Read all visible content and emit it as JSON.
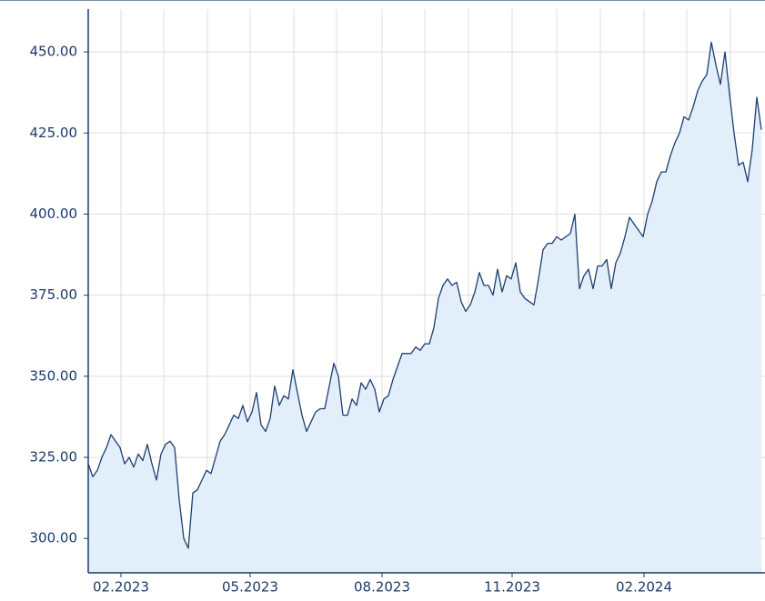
{
  "chart_data": {
    "type": "area",
    "values": [
      323,
      319,
      321,
      325,
      328,
      332,
      330,
      328,
      323,
      325,
      322,
      326,
      324,
      329,
      323,
      318,
      326,
      329,
      330,
      328,
      312,
      300,
      297,
      314,
      315,
      318,
      321,
      320,
      325,
      330,
      332,
      335,
      338,
      337,
      341,
      336,
      339,
      345,
      335,
      333,
      337,
      347,
      341,
      344,
      343,
      352,
      345,
      338,
      333,
      336,
      339,
      340,
      340,
      347,
      354,
      350,
      338,
      338,
      343,
      341,
      348,
      346,
      349,
      346,
      339,
      343,
      344,
      349,
      353,
      357,
      357,
      357,
      359,
      358,
      360,
      360,
      365,
      374,
      378,
      380,
      378,
      379,
      373,
      370,
      372,
      376,
      382,
      378,
      378,
      375,
      383,
      376,
      381,
      380,
      385,
      376,
      374,
      373,
      372,
      380,
      389,
      391,
      391,
      393,
      392,
      393,
      394,
      400,
      377,
      381,
      383,
      377,
      384,
      384,
      386,
      377,
      385,
      388,
      393,
      399,
      397,
      395,
      393,
      400,
      404,
      410,
      413,
      413,
      418,
      422,
      425,
      430,
      429,
      433,
      438,
      441,
      443,
      453,
      446,
      440,
      450,
      437,
      425,
      415,
      416,
      410,
      420,
      436,
      426
    ],
    "color": "#1d3f70",
    "fill": "#e2eefa",
    "xlim": [
      0,
      148.8
    ],
    "xticks": [
      {
        "value": 7.2,
        "label": "02.2023"
      },
      {
        "value": 35.6,
        "label": "05.2023"
      },
      {
        "value": 64.6,
        "label": "08.2023"
      },
      {
        "value": 93.2,
        "label": "11.2023"
      },
      {
        "value": 122.2,
        "label": "02.2024"
      }
    ],
    "xgrid": [
      16.6,
      26.2,
      45.2,
      54.6,
      74,
      83.6,
      103,
      112.6,
      131.6,
      141.2
    ],
    "ylim": [
      289.4,
      463.2
    ],
    "yticks": [
      {
        "value": 300,
        "label": "300.00"
      },
      {
        "value": 325,
        "label": "325.00"
      },
      {
        "value": 350,
        "label": "350.00"
      },
      {
        "value": 375,
        "label": "375.00"
      },
      {
        "value": 400,
        "label": "400.00"
      },
      {
        "value": 425,
        "label": "425.00"
      },
      {
        "value": 450,
        "label": "450.00"
      }
    ],
    "grid": true
  }
}
